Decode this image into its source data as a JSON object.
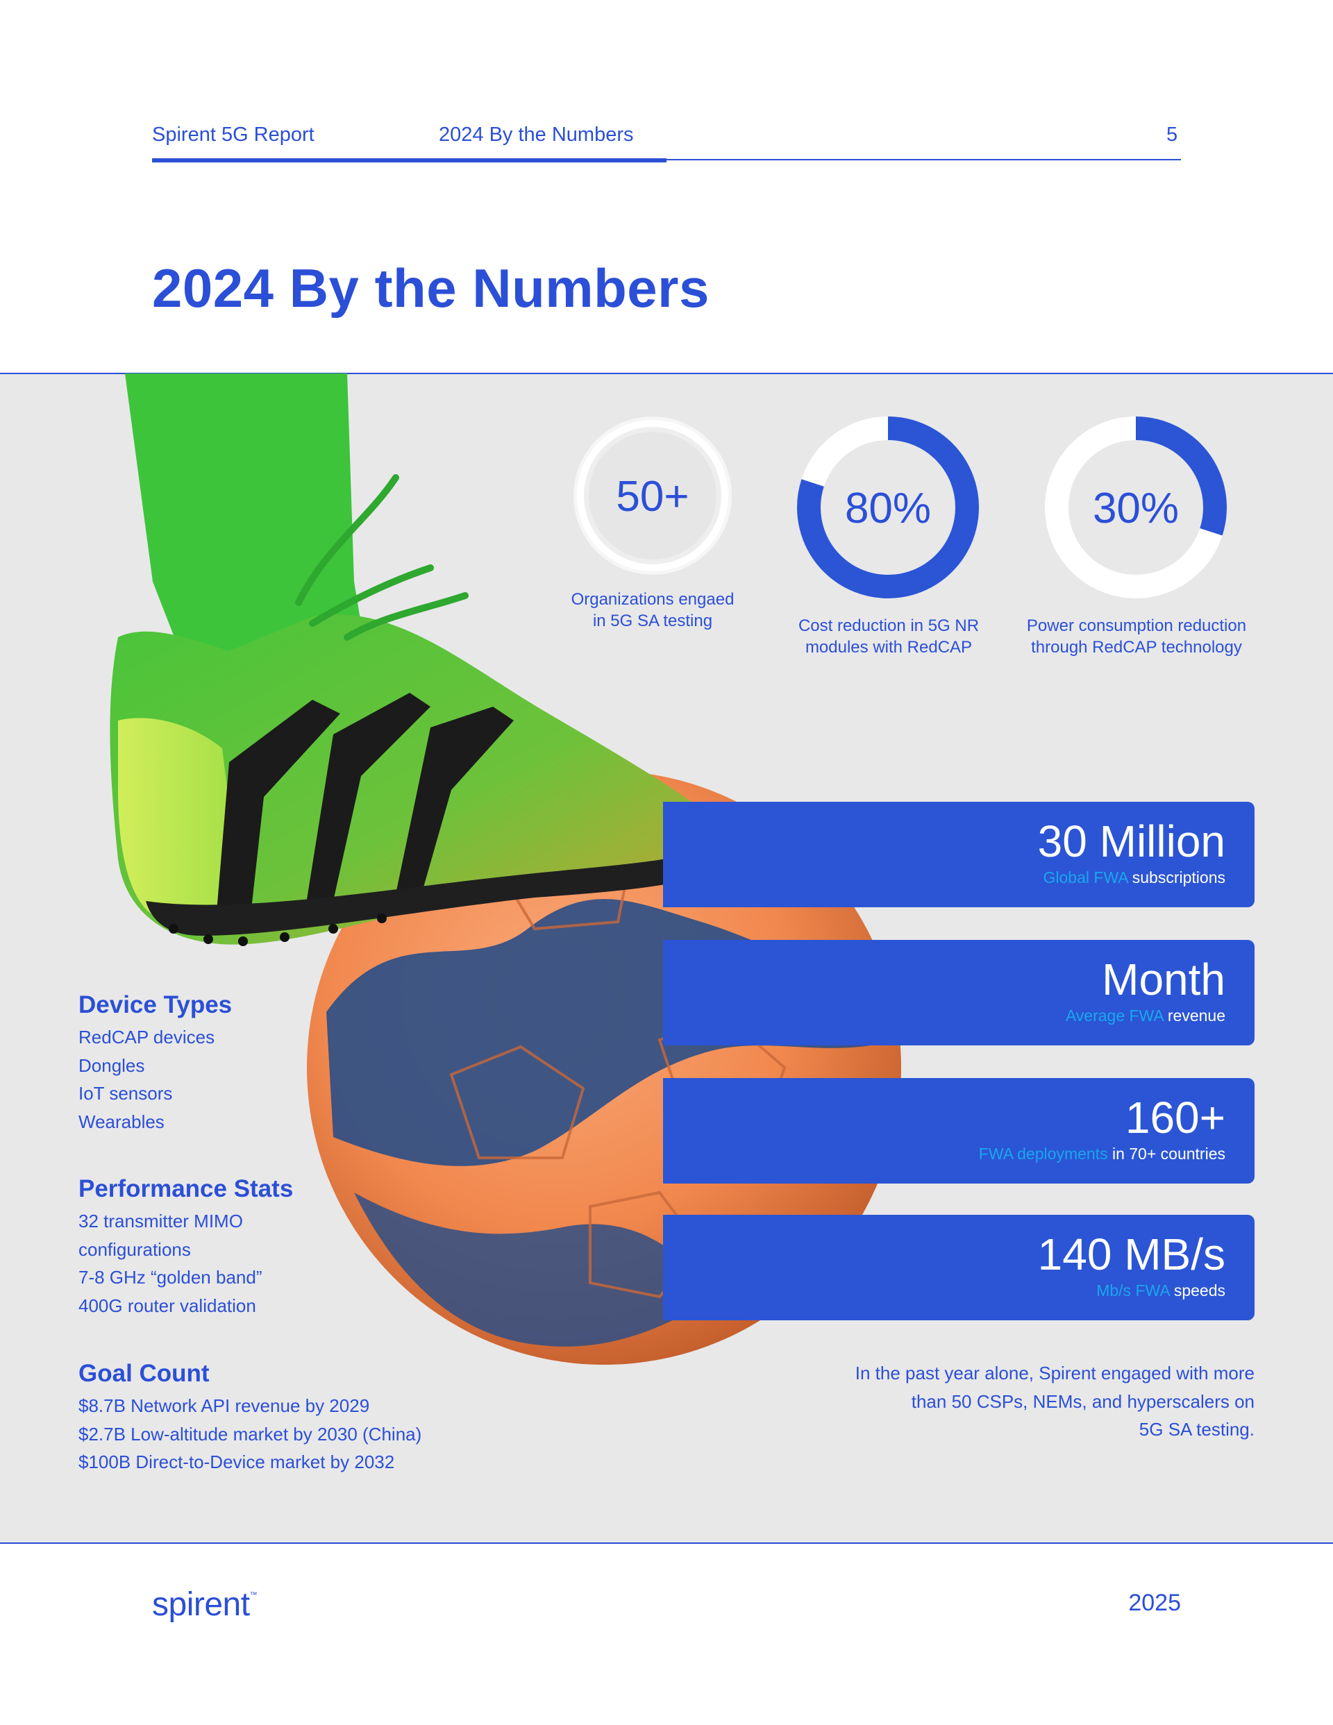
{
  "header": {
    "report": "Spirent 5G Report",
    "section": "2024 By the Numbers",
    "page_number": "5"
  },
  "title": "2024 By the Numbers",
  "stats": [
    {
      "value": "50+",
      "caption_line1": "Organizations engaed",
      "caption_line2": "in 5G SA testing",
      "ring_fraction": 0
    },
    {
      "value": "80%",
      "caption_line1": "Cost reduction in 5G NR",
      "caption_line2": "modules with RedCAP",
      "ring_fraction": 0.8
    },
    {
      "value": "30%",
      "caption_line1": "Power consumption reduction",
      "caption_line2": "through RedCAP technology",
      "ring_fraction": 0.3
    }
  ],
  "cards": [
    {
      "big": "30 Million",
      "highlight": "Global FWA",
      "rest": " subscriptions"
    },
    {
      "big": "Month",
      "highlight": "Average FWA",
      "rest": " revenue"
    },
    {
      "big": "160+",
      "highlight": "FWA deployments",
      "rest": " in 70+ countries"
    },
    {
      "big": "140 MB/s",
      "highlight": "Mb/s FWA",
      "rest": " speeds"
    }
  ],
  "lists": [
    {
      "title": "Device Types",
      "items": [
        "RedCAP devices",
        "Dongles",
        "IoT sensors",
        "Wearables"
      ]
    },
    {
      "title": "Performance Stats",
      "items": [
        "32 transmitter MIMO",
        "configurations",
        "7-8 GHz “golden band”",
        "400G router validation"
      ]
    },
    {
      "title": "Goal Count",
      "items": [
        "$8.7B Network API revenue by 2029",
        "$2.7B Low-altitude market by 2030 (China)",
        "$100B Direct-to-Device market by 2032"
      ]
    }
  ],
  "quote": {
    "line1": "In the past year alone, Spirent engaged with more",
    "line2": "than 50 CSPs, NEMs, and hyperscalers on",
    "line3": "5G SA testing."
  },
  "footer": {
    "logo": "spirent",
    "trademark": "™",
    "year": "2025"
  },
  "colors": {
    "brand_blue": "#2b4fd6",
    "card_blue": "#2b55d4",
    "highlight_cyan": "#1aa6f0",
    "band_grey": "#e8e8e9"
  }
}
